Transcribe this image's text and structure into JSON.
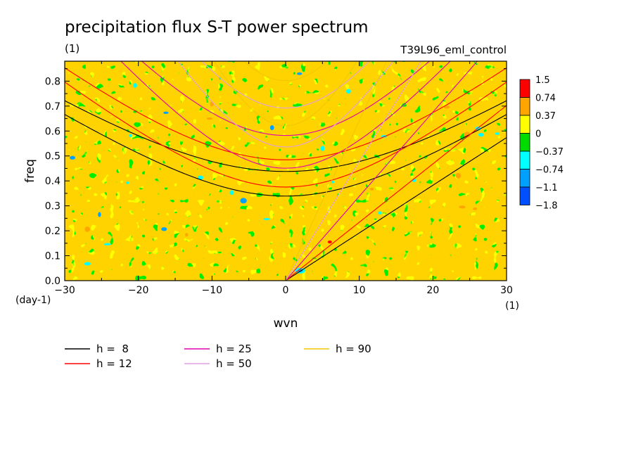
{
  "chart_data": {
    "type": "heatmap",
    "title": "precipitation flux S-T power spectrum",
    "subtitle_left": "(1)",
    "subtitle_right": "T39L96_eml_control",
    "xlabel": "wvn",
    "xunit": "(1)",
    "ylabel": "freq",
    "yunit": "(day-1)",
    "xlim": [
      -30,
      30
    ],
    "ylim": [
      0,
      0.88
    ],
    "xticks": [
      -30,
      -20,
      -10,
      0,
      10,
      20,
      30
    ],
    "yticks": [
      0.0,
      0.1,
      0.2,
      0.3,
      0.4,
      0.5,
      0.6,
      0.7,
      0.8
    ],
    "ytick_labels": [
      "0.0",
      "0.1",
      "0.2",
      "0.3",
      "0.4",
      "0.5",
      "0.6",
      "0.7",
      "0.8"
    ],
    "colorbar": {
      "levels": [
        "1.5",
        "0.74",
        "0.37",
        "0",
        "-0.37",
        "-0.74",
        "-1.1",
        "-1.8"
      ],
      "colors": [
        "#ff0000",
        "#ffa500",
        "#ffff00",
        "#00dc00",
        "#00ffff",
        "#00a0ff",
        "#0050ff"
      ]
    },
    "field_colors": {
      "dominant_high": "#ffff00",
      "dominant_low": "#00dc00",
      "rare_pos": "#ffa500",
      "rare_neg": "#00ffff",
      "rare_neg2": "#00a0ff",
      "extreme_pos": "#ff0000"
    },
    "dispersion_curves": [
      {
        "label": "h =  8",
        "h": 8,
        "color": "#000000"
      },
      {
        "label": "h = 12",
        "h": 12,
        "color": "#ff0000"
      },
      {
        "label": "h = 25",
        "h": 25,
        "color": "#e000b0"
      },
      {
        "label": "h = 50",
        "h": 50,
        "color": "#e0a0e0"
      },
      {
        "label": "h = 90",
        "h": 90,
        "color": "#f0c800"
      }
    ]
  }
}
